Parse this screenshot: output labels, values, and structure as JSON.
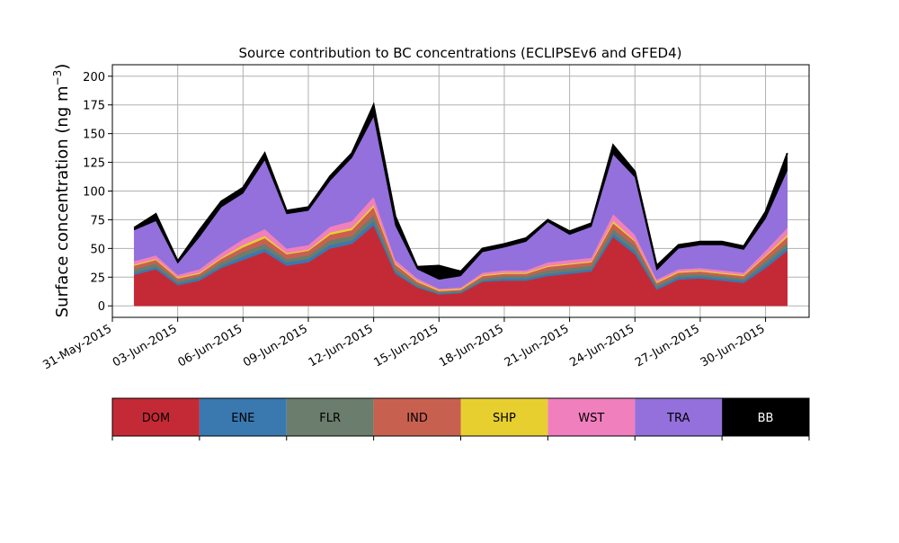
{
  "chart_data": [
    {
      "type": "area",
      "stacked": true,
      "title": "Source contribution to BC concentrations (ECLIPSEv6 and GFED4)",
      "ylabel_main": "Surface concentration (ng m",
      "ylabel_sup": "−3",
      "ylabel_close": ")",
      "xlabel": "",
      "ylim": [
        -10,
        210
      ],
      "yticks": [
        0,
        25,
        50,
        75,
        100,
        125,
        150,
        175,
        200
      ],
      "xlim": [
        "2015-05-31",
        "2015-07-02"
      ],
      "xticks": [
        "31-May-2015",
        "03-Jun-2015",
        "06-Jun-2015",
        "09-Jun-2015",
        "12-Jun-2015",
        "15-Jun-2015",
        "18-Jun-2015",
        "21-Jun-2015",
        "24-Jun-2015",
        "27-Jun-2015",
        "30-Jun-2015"
      ],
      "grid": true,
      "x": [
        "2015-06-01",
        "2015-06-02",
        "2015-06-03",
        "2015-06-04",
        "2015-06-05",
        "2015-06-06",
        "2015-06-07",
        "2015-06-08",
        "2015-06-09",
        "2015-06-10",
        "2015-06-11",
        "2015-06-12",
        "2015-06-13",
        "2015-06-14",
        "2015-06-15",
        "2015-06-16",
        "2015-06-17",
        "2015-06-18",
        "2015-06-19",
        "2015-06-20",
        "2015-06-21",
        "2015-06-22",
        "2015-06-23",
        "2015-06-24",
        "2015-06-25",
        "2015-06-26",
        "2015-06-27",
        "2015-06-28",
        "2015-06-29",
        "2015-06-30",
        "2015-07-01"
      ],
      "series": [
        {
          "name": "DOM",
          "color": "#c42a35",
          "values": [
            27,
            32,
            18,
            22,
            33,
            40,
            47,
            35,
            38,
            50,
            54,
            70,
            28,
            16,
            10,
            11,
            21,
            22,
            22,
            26,
            28,
            30,
            60,
            45,
            14,
            23,
            24,
            22,
            20,
            33,
            48
          ]
        },
        {
          "name": "ENE",
          "color": "#3a78b0",
          "values": [
            2,
            2,
            2,
            2,
            2,
            3,
            3,
            3,
            3,
            3,
            3,
            4,
            2,
            1,
            1,
            1,
            1,
            2,
            2,
            2,
            2,
            2,
            3,
            3,
            2,
            2,
            2,
            2,
            2,
            3,
            3
          ]
        },
        {
          "name": "FLR",
          "color": "#6b7d6c",
          "values": [
            3,
            3,
            2,
            2,
            3,
            4,
            4,
            3,
            3,
            4,
            4,
            5,
            3,
            2,
            1,
            1,
            2,
            2,
            2,
            3,
            3,
            3,
            4,
            4,
            2,
            2,
            2,
            2,
            2,
            3,
            4
          ]
        },
        {
          "name": "IND",
          "color": "#c86050",
          "values": [
            3,
            3,
            2,
            2,
            3,
            4,
            5,
            4,
            4,
            5,
            5,
            7,
            3,
            2,
            1,
            1,
            2,
            2,
            2,
            3,
            3,
            3,
            5,
            4,
            2,
            2,
            2,
            2,
            2,
            4,
            5
          ]
        },
        {
          "name": "SHP",
          "color": "#e8cf30",
          "values": [
            1,
            1,
            1,
            1,
            1,
            2,
            2,
            1,
            1,
            2,
            2,
            2,
            1,
            1,
            1,
            1,
            1,
            1,
            1,
            1,
            1,
            1,
            2,
            1,
            1,
            1,
            1,
            1,
            1,
            1,
            2
          ]
        },
        {
          "name": "WST",
          "color": "#f07fbe",
          "values": [
            3,
            3,
            2,
            3,
            4,
            5,
            6,
            4,
            4,
            5,
            6,
            7,
            3,
            2,
            1,
            1,
            2,
            2,
            2,
            3,
            3,
            3,
            6,
            5,
            2,
            2,
            2,
            2,
            2,
            4,
            6
          ]
        },
        {
          "name": "TRA",
          "color": "#9370db",
          "values": [
            27,
            30,
            10,
            28,
            40,
            40,
            60,
            30,
            30,
            40,
            55,
            70,
            30,
            8,
            8,
            10,
            18,
            20,
            25,
            35,
            22,
            27,
            52,
            50,
            8,
            18,
            20,
            22,
            20,
            28,
            50
          ]
        },
        {
          "name": "BB",
          "color": "#000000",
          "values": [
            2,
            6,
            2,
            6,
            5,
            5,
            6,
            3,
            3,
            4,
            4,
            10,
            8,
            2,
            12,
            4,
            3,
            3,
            3,
            2,
            3,
            3,
            8,
            5,
            4,
            3,
            3,
            3,
            3,
            6,
            15
          ]
        }
      ]
    },
    {
      "type": "legend-colorbar",
      "labels": [
        "DOM",
        "ENE",
        "FLR",
        "IND",
        "SHP",
        "WST",
        "TRA",
        "BB"
      ],
      "colors": [
        "#c42a35",
        "#3a78b0",
        "#6b7d6c",
        "#c86050",
        "#e8cf30",
        "#f07fbe",
        "#9370db",
        "#000000"
      ],
      "label_colors": [
        "#000000",
        "#000000",
        "#000000",
        "#000000",
        "#000000",
        "#000000",
        "#000000",
        "#ffffff"
      ]
    }
  ]
}
